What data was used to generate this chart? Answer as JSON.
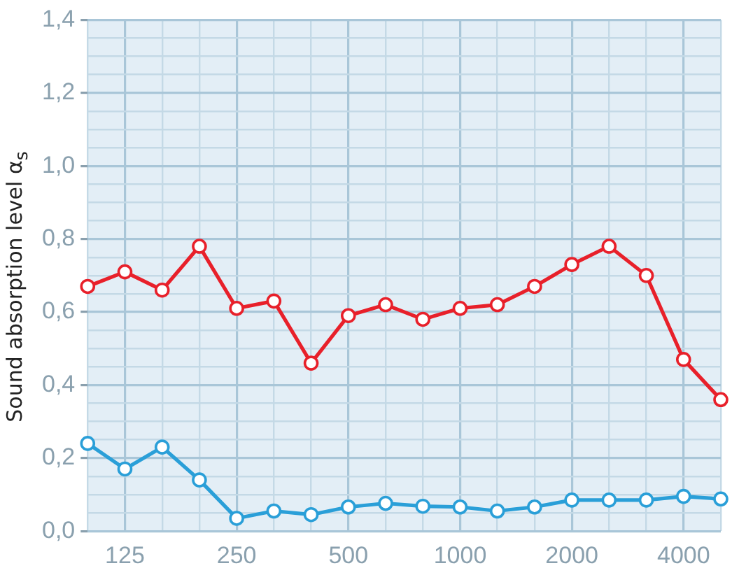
{
  "chart_data": {
    "type": "line",
    "ylabel": "Sound absorption level α$_{s}$",
    "categories": [
      null,
      "125",
      null,
      null,
      "250",
      null,
      null,
      "500",
      null,
      null,
      "1000",
      null,
      null,
      "2000",
      null,
      null,
      "4000",
      null
    ],
    "series": [
      {
        "color": "#e8202a",
        "values": [
          0.67,
          0.71,
          0.66,
          0.78,
          0.61,
          0.63,
          0.46,
          0.59,
          0.62,
          0.58,
          0.61,
          0.62,
          0.67,
          0.73,
          0.78,
          0.7,
          0.47,
          0.36
        ]
      },
      {
        "color": "#2a9fd8",
        "values": [
          0.24,
          0.17,
          0.23,
          0.14,
          0.035,
          0.055,
          0.045,
          0.066,
          0.076,
          0.068,
          0.066,
          0.055,
          0.066,
          0.085,
          0.085,
          0.085,
          0.095,
          0.088
        ]
      }
    ],
    "ylim": [
      0,
      1.4
    ],
    "yticks": [
      {
        "value": 0,
        "label": "0,0"
      },
      {
        "value": 0.05,
        "label": null
      },
      {
        "value": 0.1,
        "label": null
      },
      {
        "value": 0.15,
        "label": null
      },
      {
        "value": 0.2,
        "label": "0,2"
      },
      {
        "value": 0.25,
        "label": null
      },
      {
        "value": 0.3,
        "label": null
      },
      {
        "value": 0.35,
        "label": null
      },
      {
        "value": 0.4,
        "label": "0,4"
      },
      {
        "value": 0.45,
        "label": null
      },
      {
        "value": 0.5,
        "label": null
      },
      {
        "value": 0.55,
        "label": null
      },
      {
        "value": 0.6,
        "label": "0,6"
      },
      {
        "value": 0.65,
        "label": null
      },
      {
        "value": 0.7,
        "label": null
      },
      {
        "value": 0.75,
        "label": null
      },
      {
        "value": 0.8,
        "label": "0,8"
      },
      {
        "value": 0.85,
        "label": null
      },
      {
        "value": 0.9,
        "label": null
      },
      {
        "value": 0.95,
        "label": null
      },
      {
        "value": 1.0,
        "label": "1,0"
      },
      {
        "value": 1.05,
        "label": null
      },
      {
        "value": 1.1,
        "label": null
      },
      {
        "value": 1.15,
        "label": null
      },
      {
        "value": 1.2,
        "label": "1,2"
      },
      {
        "value": 1.25,
        "label": null
      },
      {
        "value": 1.3,
        "label": null
      },
      {
        "value": 1.35,
        "label": null
      },
      {
        "value": 1.4,
        "label": "1,4"
      }
    ],
    "grid": true,
    "legend": false,
    "marker": "circle",
    "line_style": "solid"
  }
}
